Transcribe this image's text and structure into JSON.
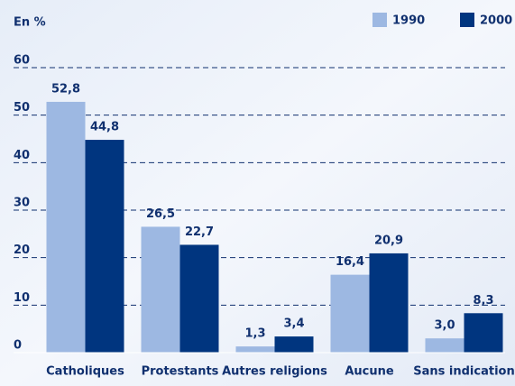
{
  "chart_data": {
    "type": "bar",
    "y_label": "En %",
    "categories": [
      "Catholiques",
      "Protestants",
      "Autres religions",
      "Aucune",
      "Sans indication"
    ],
    "series": [
      {
        "name": "1990",
        "color": "#9db8e2",
        "values": [
          52.8,
          26.5,
          1.3,
          16.4,
          3.0
        ],
        "value_labels": [
          "52,8",
          "26,5",
          "1,3",
          "16,4",
          "3,0"
        ]
      },
      {
        "name": "2000",
        "color": "#00357f",
        "values": [
          44.8,
          22.7,
          3.4,
          20.9,
          8.3
        ],
        "value_labels": [
          "44,8",
          "22,7",
          "3,4",
          "20,9",
          "8,3"
        ]
      }
    ],
    "ylim": [
      0,
      60
    ],
    "yticks": [
      0,
      10,
      20,
      30,
      40,
      50,
      60
    ],
    "grid": true,
    "legend": "top-right"
  }
}
